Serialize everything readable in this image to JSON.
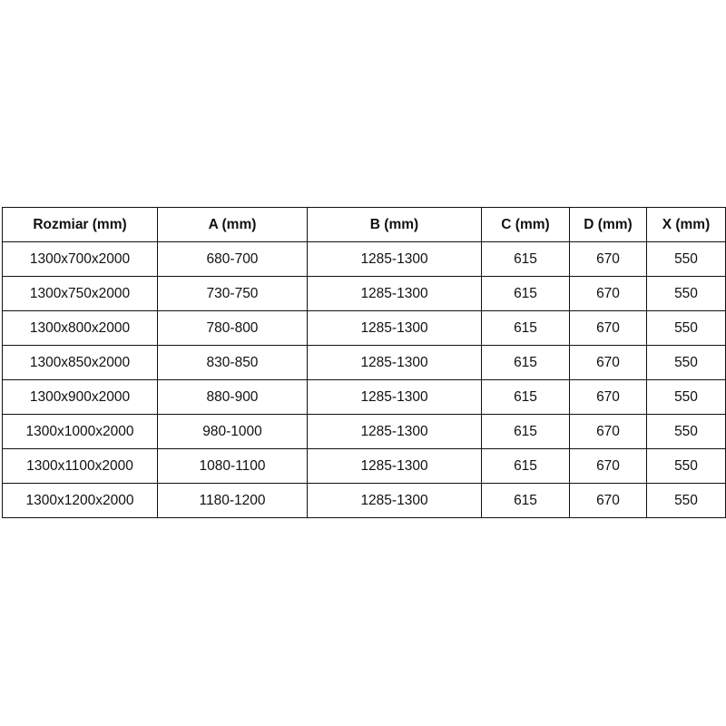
{
  "table": {
    "headers": [
      "Rozmiar (mm)",
      "A (mm)",
      "B (mm)",
      "C (mm)",
      "D (mm)",
      "X (mm)"
    ],
    "rows": [
      [
        "1300x700x2000",
        "680-700",
        "1285-1300",
        "615",
        "670",
        "550"
      ],
      [
        "1300x750x2000",
        "730-750",
        "1285-1300",
        "615",
        "670",
        "550"
      ],
      [
        "1300x800x2000",
        "780-800",
        "1285-1300",
        "615",
        "670",
        "550"
      ],
      [
        "1300x850x2000",
        "830-850",
        "1285-1300",
        "615",
        "670",
        "550"
      ],
      [
        "1300x900x2000",
        "880-900",
        "1285-1300",
        "615",
        "670",
        "550"
      ],
      [
        "1300x1000x2000",
        "980-1000",
        "1285-1300",
        "615",
        "670",
        "550"
      ],
      [
        "1300x1100x2000",
        "1080-1100",
        "1285-1300",
        "615",
        "670",
        "550"
      ],
      [
        "1300x1200x2000",
        "1180-1200",
        "1285-1300",
        "615",
        "670",
        "550"
      ]
    ]
  }
}
